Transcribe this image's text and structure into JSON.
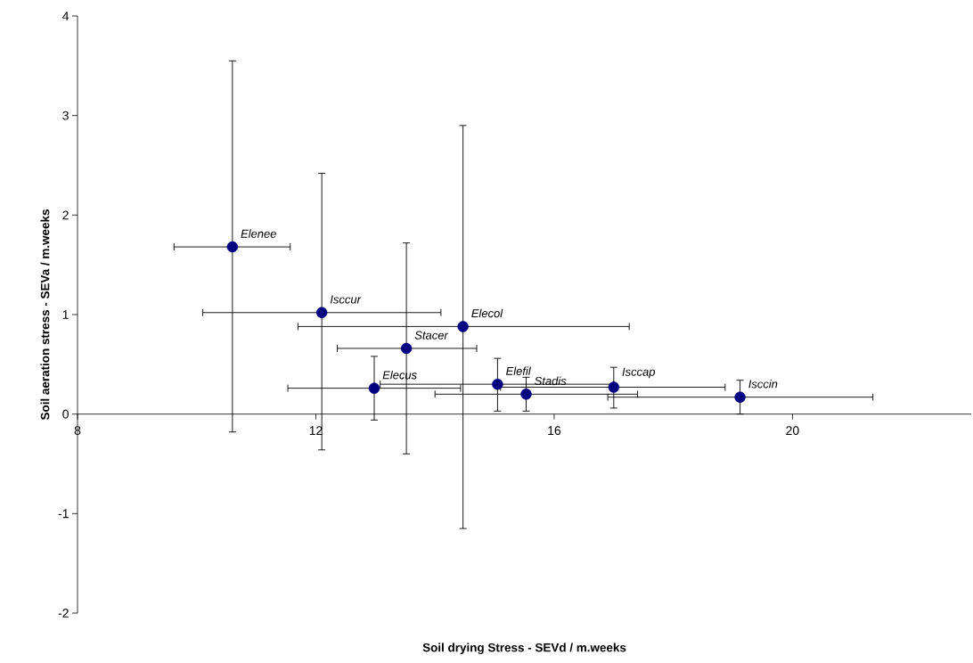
{
  "chart_data": {
    "type": "scatter",
    "xlabel": "Soil drying Stress - SEVd / m.weeks",
    "ylabel": "Soil aeration stress - SEVa / m.weeks",
    "xlim": [
      8,
      23
    ],
    "ylim": [
      -2,
      4
    ],
    "xticks": [
      8,
      12,
      16,
      20
    ],
    "yticks": [
      -2,
      -1,
      0,
      1,
      2,
      3,
      4
    ],
    "x": [
      10.6,
      12.1,
      14.47,
      13.52,
      12.98,
      15.05,
      15.53,
      17.0,
      19.12
    ],
    "series": [
      {
        "color": "#000080",
        "values": [
          1.68,
          1.02,
          0.88,
          0.66,
          0.26,
          0.3,
          0.2,
          0.27,
          0.17
        ],
        "errors": [
          [
            -0.18,
            3.55
          ],
          [
            -0.36,
            2.42
          ],
          [
            -1.15,
            2.9
          ],
          [
            -0.4,
            1.72
          ],
          [
            -0.06,
            0.58
          ],
          [
            0.03,
            0.56
          ],
          [
            0.03,
            0.37
          ],
          [
            0.06,
            0.47
          ],
          [
            0.0,
            0.34
          ]
        ],
        "xerrors": [
          [
            9.62,
            11.57
          ],
          [
            10.1,
            14.1
          ],
          [
            11.7,
            17.26
          ],
          [
            12.36,
            14.7
          ],
          [
            11.53,
            14.43
          ],
          [
            13.08,
            17.0
          ],
          [
            14.0,
            17.4
          ],
          [
            15.1,
            18.87
          ],
          [
            16.9,
            21.35
          ]
        ]
      }
    ],
    "annotations": [
      {
        "text": "Elenee",
        "x": 10.6,
        "y": 1.68
      },
      {
        "text": "Isccur",
        "x": 12.1,
        "y": 1.02
      },
      {
        "text": "Elecol",
        "x": 14.47,
        "y": 0.88
      },
      {
        "text": "Stacer",
        "x": 13.52,
        "y": 0.66
      },
      {
        "text": "Elecus",
        "x": 12.98,
        "y": 0.26
      },
      {
        "text": "Elefil",
        "x": 15.05,
        "y": 0.3
      },
      {
        "text": "Stadis",
        "x": 15.53,
        "y": 0.2
      },
      {
        "text": "Isccap",
        "x": 17.0,
        "y": 0.27
      },
      {
        "text": "Isccin",
        "x": 19.12,
        "y": 0.17
      }
    ]
  }
}
